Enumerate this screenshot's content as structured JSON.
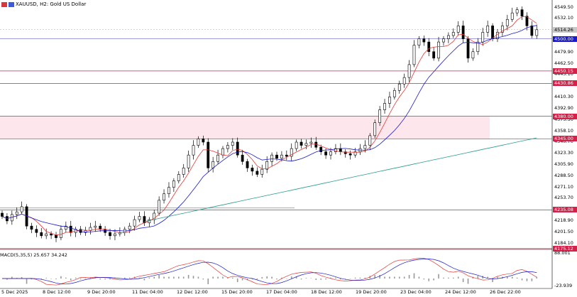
{
  "header": {
    "symbol_text": "XAUUSD, H2:  Gold US Dollar"
  },
  "price_axis": {
    "ticks": [
      {
        "label": "4549.50",
        "value": 4549.5
      },
      {
        "label": "4532.10",
        "value": 4532.1
      },
      {
        "label": "4514.70",
        "value": 4514.7
      },
      {
        "label": "4479.90",
        "value": 4479.9
      },
      {
        "label": "4462.50",
        "value": 4462.5
      },
      {
        "label": "4445.10",
        "value": 4445.1
      },
      {
        "label": "4410.30",
        "value": 4410.3
      },
      {
        "label": "4392.90",
        "value": 4392.9
      },
      {
        "label": "4375.50",
        "value": 4375.5
      },
      {
        "label": "4358.10",
        "value": 4358.1
      },
      {
        "label": "4340.70",
        "value": 4340.7
      },
      {
        "label": "4323.30",
        "value": 4323.3
      },
      {
        "label": "4305.90",
        "value": 4305.9
      },
      {
        "label": "4288.50",
        "value": 4288.5
      },
      {
        "label": "4271.10",
        "value": 4271.1
      },
      {
        "label": "4253.70",
        "value": 4253.7
      },
      {
        "label": "4218.90",
        "value": 4218.9
      },
      {
        "label": "4201.50",
        "value": 4201.5
      },
      {
        "label": "4184.10",
        "value": 4184.1
      }
    ],
    "level_labels": [
      {
        "label": "4500.00",
        "value": 4500.0,
        "color": "#1a1acc",
        "line": "#6666cc"
      },
      {
        "label": "4450.15",
        "value": 4450.15,
        "color": "#d6204a",
        "line": "#d6204a"
      },
      {
        "label": "4430.86",
        "value": 4430.86,
        "color": "#d6204a",
        "line": "#d6204a"
      },
      {
        "label": "4380.00",
        "value": 4380.0,
        "color": "#d6204a",
        "line": "#d6204a"
      },
      {
        "label": "4345.00",
        "value": 4345.0,
        "color": "#d6204a",
        "line": "#d6204a"
      },
      {
        "label": "4235.08",
        "value": 4235.08,
        "color": "#d6204a",
        "line": "#d6204a"
      },
      {
        "label": "4175.12",
        "value": 4175.12,
        "color": "#d6204a",
        "line": "#d6204a"
      }
    ],
    "current_price_label": "4514.26"
  },
  "macd": {
    "title": "MACD(5,35,5) 25.657 34.242",
    "axis_top": "88.001",
    "axis_bottom": "-23.939"
  },
  "time_axis": {
    "labels": [
      "5 Dec 2025",
      "8 Dec 12:00",
      "9 Dec 20:00",
      "11 Dec 04:00",
      "12 Dec 12:00",
      "15 Dec 20:00",
      "17 Dec 04:00",
      "18 Dec 12:00",
      "19 Dec 20:00",
      "23 Dec 04:00",
      "24 Dec 12:00",
      "26 Dec 22:00"
    ]
  },
  "chart_data": {
    "type": "candlestick",
    "title": "XAUUSD, H2: Gold US Dollar",
    "ylim": [
      4175,
      4560
    ],
    "closes": [
      4225,
      4218,
      4228,
      4232,
      4240,
      4210,
      4205,
      4200,
      4195,
      4198,
      4196,
      4192,
      4205,
      4210,
      4200,
      4205,
      4200,
      4203,
      4208,
      4210,
      4205,
      4200,
      4195,
      4198,
      4200,
      4205,
      4210,
      4220,
      4225,
      4215,
      4220,
      4230,
      4250,
      4260,
      4270,
      4280,
      4290,
      4300,
      4320,
      4335,
      4345,
      4340,
      4300,
      4310,
      4320,
      4330,
      4335,
      4340,
      4320,
      4310,
      4300,
      4295,
      4290,
      4298,
      4310,
      4320,
      4315,
      4320,
      4318,
      4330,
      4340,
      4335,
      4338,
      4340,
      4332,
      4325,
      4320,
      4325,
      4330,
      4325,
      4322,
      4320,
      4325,
      4330,
      4335,
      4350,
      4370,
      4390,
      4400,
      4410,
      4420,
      4430,
      4440,
      4460,
      4490,
      4500,
      4495,
      4480,
      4470,
      4495,
      4500,
      4505,
      4510,
      4520,
      4500,
      4470,
      4480,
      4495,
      4510,
      4520,
      4500,
      4510,
      4520,
      4530,
      4540,
      4545,
      4535,
      4520,
      4505,
      4514
    ],
    "levels": [
      4500.0,
      4450.15,
      4430.86,
      4380.0,
      4345.0,
      4235.08,
      4175.12
    ]
  }
}
